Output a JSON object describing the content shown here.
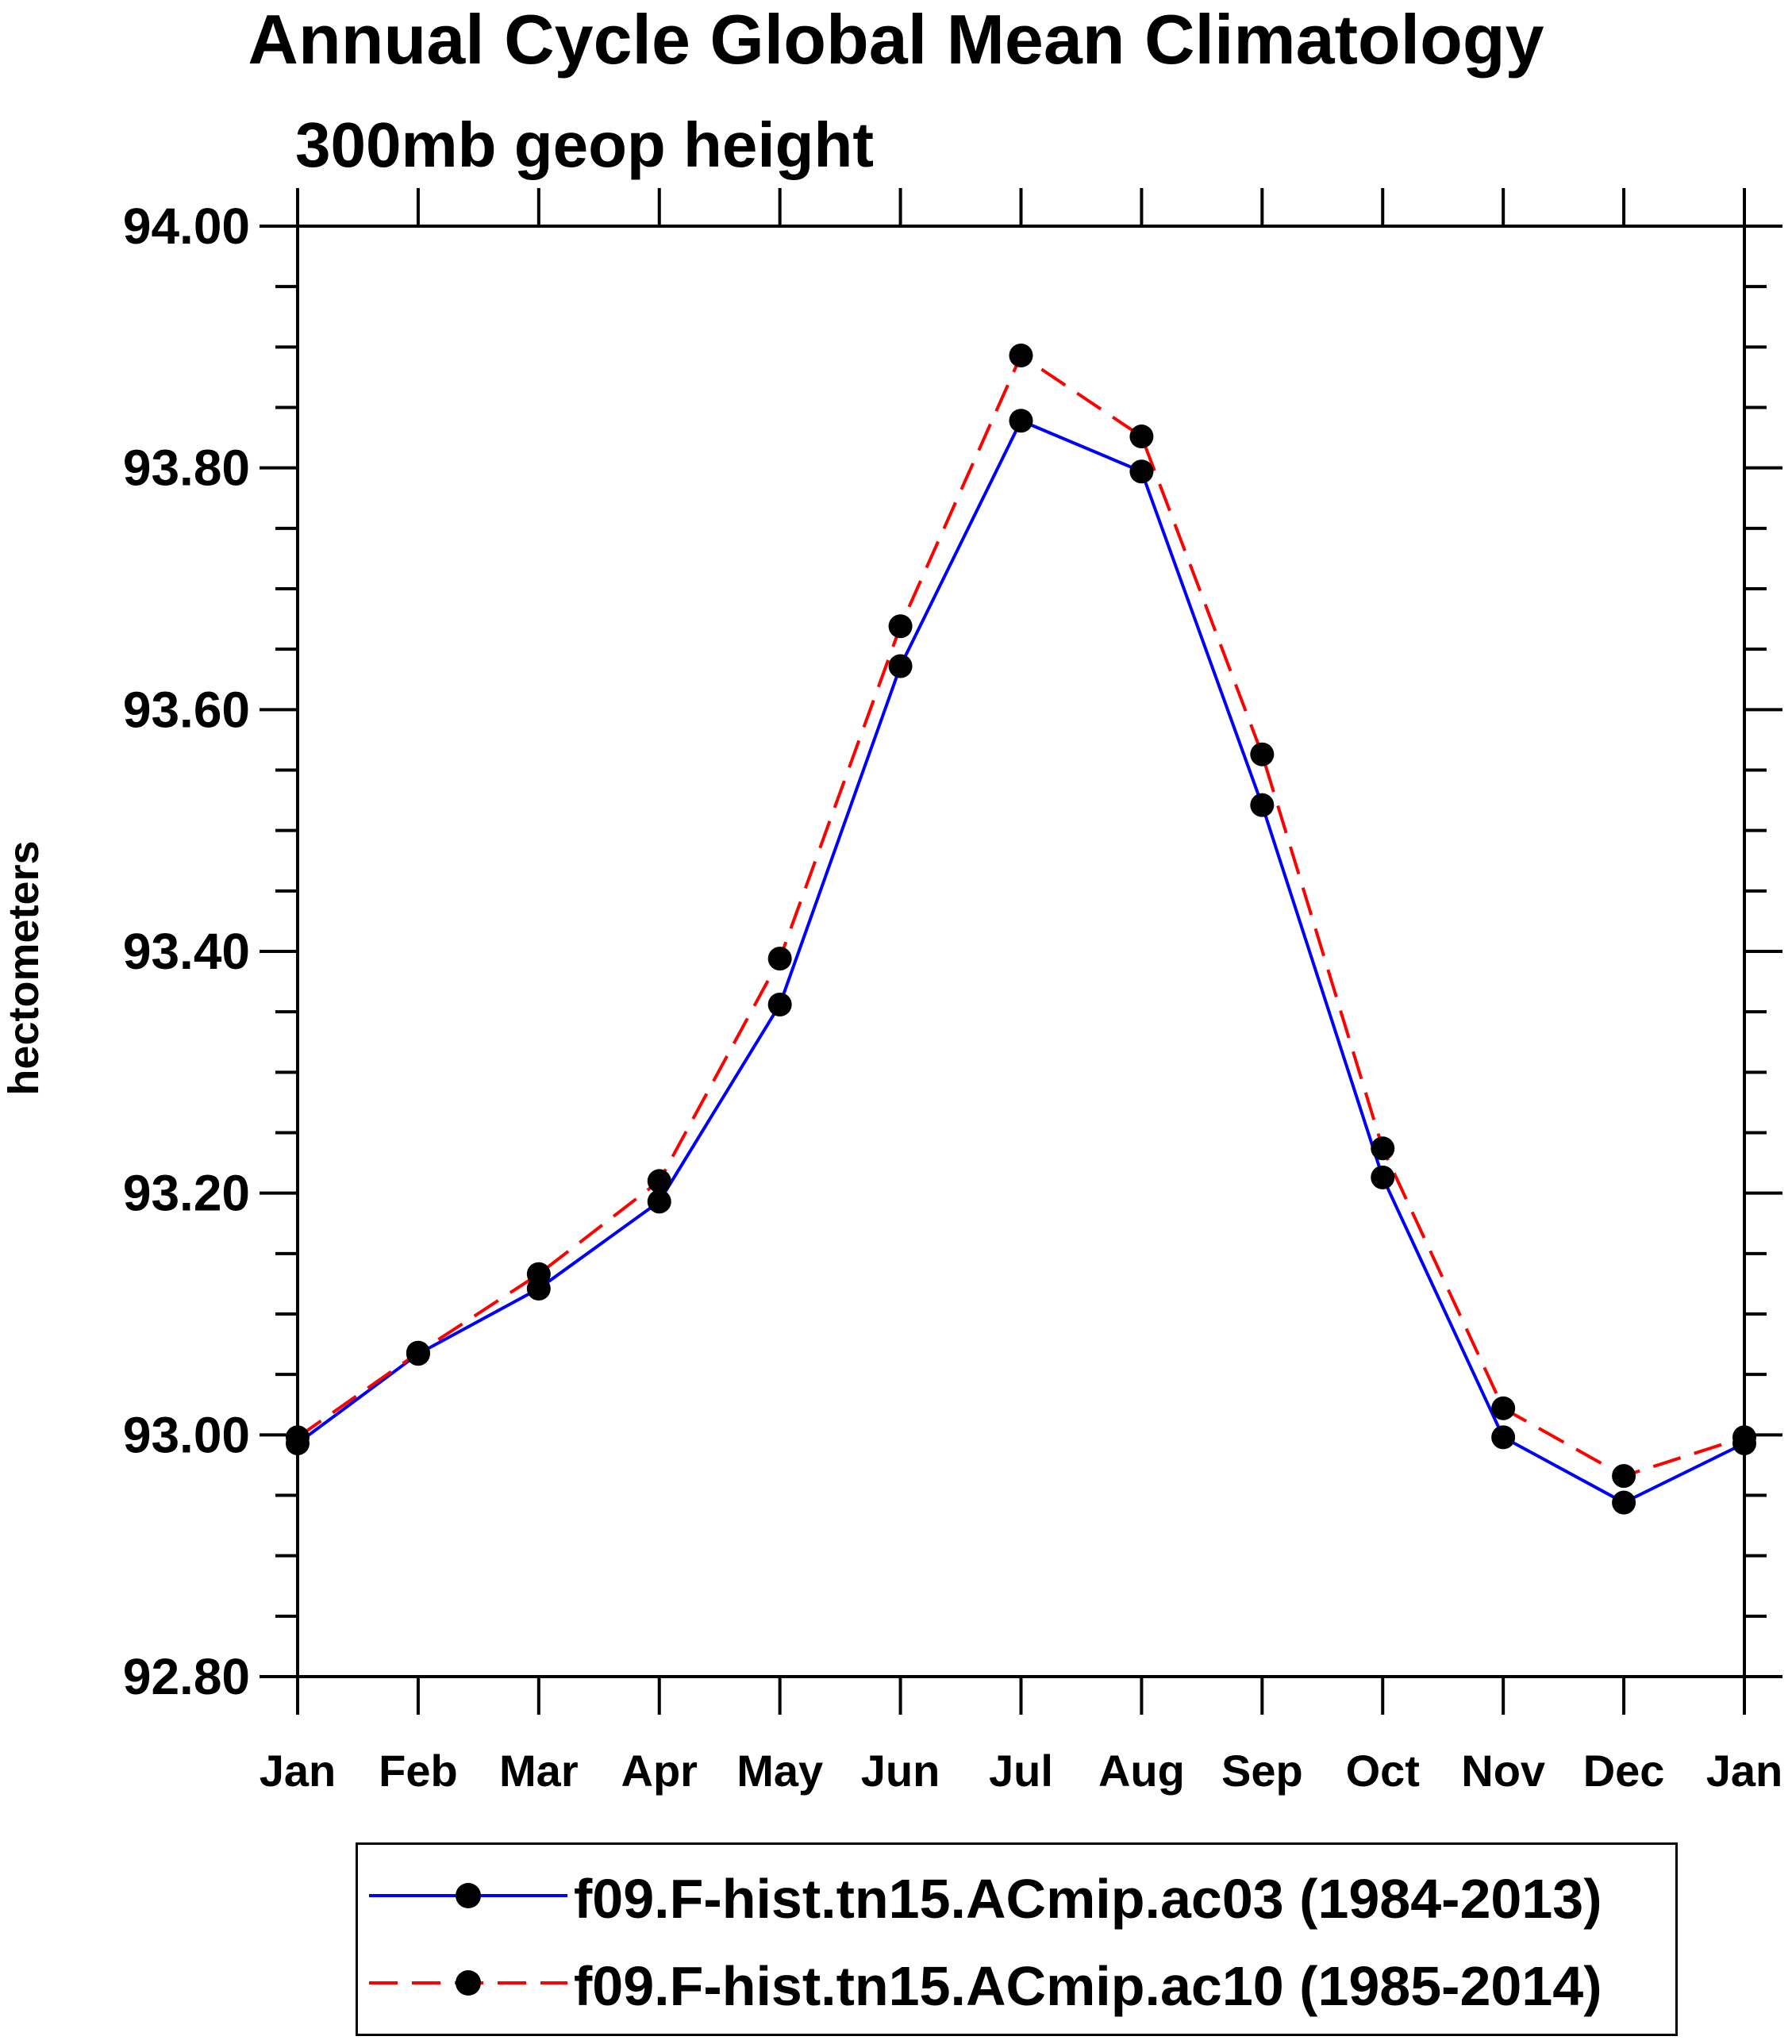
{
  "chart_data": {
    "type": "line",
    "title": "Annual Cycle Global Mean Climatology",
    "subtitle": "300mb geop height",
    "ylabel": "hectometers",
    "xlabel": "",
    "categories": [
      "Jan",
      "Feb",
      "Mar",
      "Apr",
      "May",
      "Jun",
      "Jul",
      "Aug",
      "Sep",
      "Oct",
      "Nov",
      "Dec",
      "Jan"
    ],
    "ylim": [
      92.8,
      94.0
    ],
    "yticks": [
      "92.80",
      "93.00",
      "93.20",
      "93.40",
      "93.60",
      "93.80",
      "94.00"
    ],
    "grid": false,
    "legend_position": "bottom",
    "series": [
      {
        "name": "f09.F-hist.tn15.ACmip.ac03 (1984-2013)",
        "color": "#0000ff",
        "style": "solid",
        "marker": "filled-circle",
        "values": [
          92.993,
          93.067,
          93.121,
          93.193,
          93.356,
          93.636,
          93.839,
          93.797,
          93.521,
          93.213,
          92.998,
          92.944,
          92.993
        ]
      },
      {
        "name": "f09.F-hist.tn15.ACmip.ac10 (1985-2014)",
        "color": "#ff0000",
        "style": "dashed",
        "marker": "filled-circle",
        "values": [
          92.998,
          93.068,
          93.133,
          93.21,
          93.394,
          93.669,
          93.893,
          93.826,
          93.563,
          93.237,
          93.022,
          92.966,
          92.998
        ]
      }
    ]
  }
}
